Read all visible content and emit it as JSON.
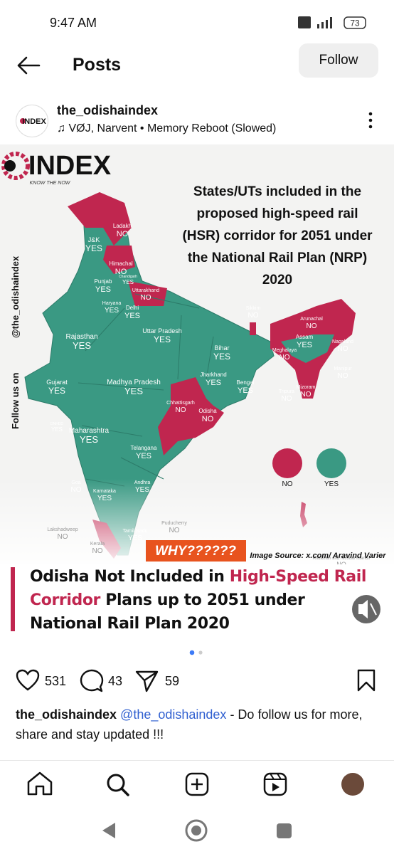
{
  "status_bar": {
    "time": "9:47 AM",
    "battery": "73"
  },
  "header": {
    "title": "Posts",
    "follow_button": "Follow"
  },
  "post": {
    "username": "the_odishaindex",
    "audio": "VØJ, Narvent • Memory Reboot (Slowed)",
    "image": {
      "logo": "INDEX",
      "tagline": "KNOW THE NOW",
      "side_text": "Follow us on",
      "side_handle": "@the_odishaindex",
      "title": [
        "States/UTs included in the",
        "proposed high-speed rail",
        "(HSR) corridor for 2051 under",
        "the National Rail Plan (NRP)",
        "2020"
      ],
      "states": [
        {
          "name": "Ladakh",
          "status": "NO"
        },
        {
          "name": "J&K",
          "status": "YES"
        },
        {
          "name": "Himachal",
          "status": "NO"
        },
        {
          "name": "Chandigarh",
          "status": "YES"
        },
        {
          "name": "Punjab",
          "status": "YES"
        },
        {
          "name": "Uttarakhand",
          "status": "NO"
        },
        {
          "name": "Haryana",
          "status": "YES"
        },
        {
          "name": "Delhi",
          "status": "YES"
        },
        {
          "name": "Rajasthan",
          "status": "YES"
        },
        {
          "name": "Uttar Pradesh",
          "status": "YES"
        },
        {
          "name": "Sikkim",
          "status": "NO"
        },
        {
          "name": "Arunachal",
          "status": "NO"
        },
        {
          "name": "Assam",
          "status": "YES"
        },
        {
          "name": "Nagaland",
          "status": "NO"
        },
        {
          "name": "Meghalaya",
          "status": "NO"
        },
        {
          "name": "Manipur",
          "status": "NO"
        },
        {
          "name": "Bihar",
          "status": "YES"
        },
        {
          "name": "Jharkhand",
          "status": "YES"
        },
        {
          "name": "Bengal",
          "status": "YES"
        },
        {
          "name": "Tripura",
          "status": "NO"
        },
        {
          "name": "Mizoram",
          "status": "NO"
        },
        {
          "name": "Gujarat",
          "status": "YES"
        },
        {
          "name": "Madhya Pradesh",
          "status": "YES"
        },
        {
          "name": "Chhattisgarh",
          "status": "NO"
        },
        {
          "name": "Odisha",
          "status": "NO"
        },
        {
          "name": "DNHDD",
          "status": "YES"
        },
        {
          "name": "Maharashtra",
          "status": "YES"
        },
        {
          "name": "Telangana",
          "status": "YES"
        },
        {
          "name": "Goa",
          "status": "NO"
        },
        {
          "name": "Karnataka",
          "status": "YES"
        },
        {
          "name": "Andhra",
          "status": "YES"
        },
        {
          "name": "Puducherry",
          "status": "NO"
        },
        {
          "name": "Lakshadweep",
          "status": "NO"
        },
        {
          "name": "Kerala",
          "status": "NO"
        },
        {
          "name": "Tamil Nadu",
          "status": "YES"
        },
        {
          "name": "Andaman and Nicobar Islands",
          "status": "NO"
        }
      ],
      "legend": [
        {
          "label": "NO",
          "color": "#c0264f"
        },
        {
          "label": "YES",
          "color": "#3a9983"
        }
      ],
      "why": "WHY??????",
      "source": "Image Source: x.com/ Aravind Varier",
      "headline": [
        {
          "text": "Odisha Not Included in ",
          "highlight": false
        },
        {
          "text": "High-Speed Rail Corridor",
          "highlight": true
        },
        {
          "text": " Plans up to 2051 under National Rail Plan 2020",
          "highlight": false
        }
      ]
    },
    "likes": 531,
    "comments": 43,
    "shares": 59,
    "caption": {
      "username": "the_odishaindex",
      "mention": "@the_odishaindex",
      "text": " - Do follow us for more, share and stay updated !!!"
    }
  }
}
